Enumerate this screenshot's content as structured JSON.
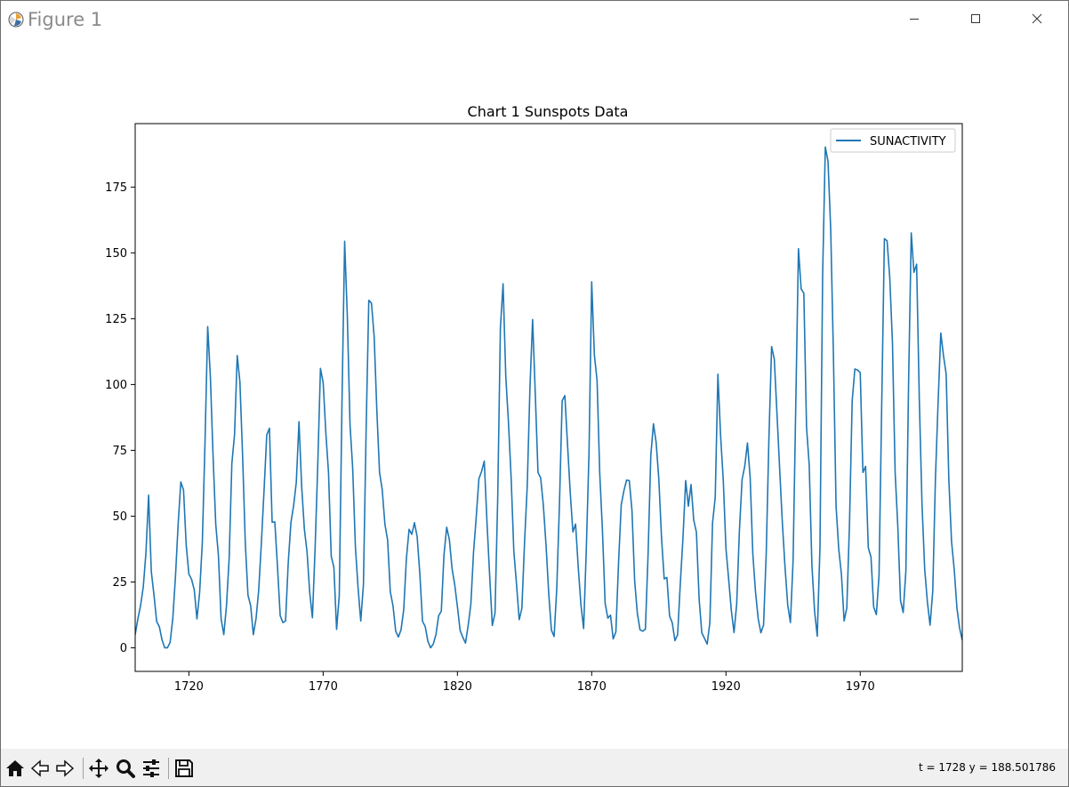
{
  "window": {
    "title": "Figure 1",
    "controls": [
      "minimize-icon",
      "maximize-icon",
      "close-icon"
    ]
  },
  "toolbar": {
    "buttons": [
      "home-icon",
      "back-icon",
      "forward-icon",
      "pan-icon",
      "zoom-icon",
      "configure-subplots-icon",
      "save-icon"
    ],
    "coords_text": "t = 1728  y = 188.501786"
  },
  "chart_data": {
    "type": "line",
    "title": "Chart 1 Sunspots Data",
    "xlabel": "",
    "ylabel": "",
    "xlim": [
      1700,
      2008
    ],
    "ylim": [
      -8.96,
      199.1
    ],
    "x_ticks": [
      1720,
      1770,
      1820,
      1870,
      1920,
      1970
    ],
    "y_ticks": [
      0,
      25,
      50,
      75,
      100,
      125,
      150,
      175
    ],
    "grid": false,
    "legend": "top-right",
    "line_color": "#1f77b4",
    "series": [
      {
        "name": "SUNACTIVITY",
        "x_start": 1700,
        "x_step": 1,
        "values": [
          5.0,
          11.0,
          16.0,
          23.0,
          36.0,
          58.0,
          29.0,
          20.0,
          10.0,
          8.0,
          3.0,
          0.0,
          0.0,
          2.0,
          11.0,
          27.0,
          47.0,
          63.0,
          60.0,
          39.0,
          28.0,
          26.0,
          22.0,
          11.0,
          21.0,
          40.0,
          78.0,
          122.0,
          103.0,
          73.0,
          47.0,
          35.0,
          11.0,
          5.0,
          16.0,
          34.0,
          70.0,
          81.0,
          111.0,
          101.0,
          73.0,
          40.0,
          20.0,
          16.0,
          5.0,
          11.0,
          22.0,
          40.0,
          60.0,
          80.9,
          83.4,
          47.7,
          47.8,
          30.7,
          12.2,
          9.6,
          10.2,
          32.4,
          47.6,
          54.0,
          62.9,
          85.9,
          61.2,
          45.1,
          36.4,
          20.9,
          11.4,
          37.8,
          69.8,
          106.1,
          100.8,
          81.6,
          66.5,
          34.8,
          30.6,
          7.0,
          19.8,
          92.5,
          154.4,
          125.9,
          84.8,
          68.1,
          38.5,
          22.8,
          10.2,
          24.1,
          82.9,
          132.0,
          130.9,
          118.1,
          89.9,
          66.6,
          60.0,
          46.9,
          41.0,
          21.3,
          16.0,
          6.4,
          4.1,
          6.8,
          14.5,
          34.0,
          45.0,
          43.1,
          47.5,
          42.2,
          28.1,
          10.1,
          8.1,
          2.5,
          0.0,
          1.4,
          5.0,
          12.2,
          13.9,
          35.4,
          45.8,
          41.1,
          30.1,
          23.9,
          15.6,
          6.6,
          4.0,
          1.8,
          8.5,
          16.6,
          36.3,
          49.6,
          64.2,
          67.0,
          70.9,
          47.8,
          27.5,
          8.5,
          13.2,
          56.9,
          121.5,
          138.3,
          103.2,
          85.7,
          64.6,
          36.7,
          24.2,
          10.7,
          15.0,
          40.1,
          61.5,
          98.5,
          124.7,
          96.3,
          66.6,
          64.5,
          54.1,
          39.0,
          20.6,
          6.7,
          4.3,
          22.7,
          54.8,
          93.8,
          95.8,
          77.2,
          59.1,
          44.0,
          47.0,
          30.5,
          16.3,
          7.3,
          37.6,
          74.0,
          139.0,
          111.2,
          101.6,
          66.2,
          44.7,
          17.0,
          11.3,
          12.4,
          3.4,
          6.0,
          32.3,
          54.3,
          59.7,
          63.7,
          63.5,
          52.2,
          25.4,
          13.1,
          6.8,
          6.3,
          7.1,
          35.6,
          73.0,
          85.1,
          78.0,
          64.0,
          41.8,
          26.2,
          26.7,
          12.1,
          9.5,
          2.7,
          5.0,
          24.4,
          42.0,
          63.5,
          53.8,
          62.0,
          48.5,
          43.9,
          18.6,
          5.7,
          3.6,
          1.4,
          9.6,
          47.4,
          57.1,
          103.9,
          80.6,
          63.6,
          37.6,
          26.1,
          14.2,
          5.8,
          16.7,
          44.3,
          63.9,
          69.0,
          77.8,
          64.9,
          35.7,
          21.2,
          11.1,
          5.7,
          8.7,
          36.1,
          79.7,
          114.4,
          109.6,
          88.8,
          67.8,
          47.5,
          30.6,
          16.3,
          9.6,
          33.2,
          92.6,
          151.6,
          136.3,
          134.7,
          83.9,
          69.4,
          31.5,
          13.9,
          4.4,
          38.0,
          141.7,
          190.2,
          184.8,
          159.0,
          112.3,
          53.9,
          37.5,
          27.9,
          10.2,
          15.1,
          47.0,
          93.8,
          105.9,
          105.5,
          104.5,
          66.6,
          68.9,
          38.0,
          34.5,
          15.5,
          12.6,
          27.5,
          92.5,
          155.4,
          154.6,
          140.5,
          115.9,
          66.6,
          45.9,
          17.9,
          13.4,
          29.2,
          100.2,
          157.6,
          142.6,
          145.7,
          94.3,
          54.6,
          29.9,
          17.5,
          8.6,
          21.5,
          64.3,
          93.3,
          119.6,
          111.0,
          104.0,
          63.7,
          40.4,
          29.8,
          15.2,
          7.5,
          2.9
        ]
      }
    ]
  }
}
